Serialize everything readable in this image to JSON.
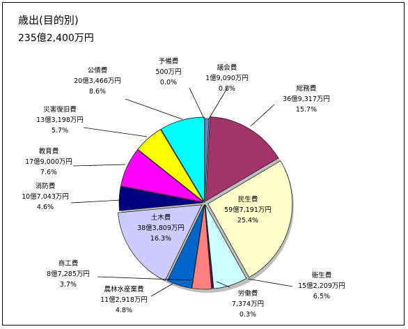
{
  "chart_data": {
    "type": "pie",
    "title": "歳出(目的別)",
    "subtitle": "235億2,400万円",
    "slices": [
      {
        "name": "議会費",
        "amount": "1億9,090万円",
        "percent": "0.8%",
        "value": 0.8,
        "color": "#6f7fc4"
      },
      {
        "name": "総務費",
        "amount": "36億9,317万円",
        "percent": "15.7%",
        "value": 15.7,
        "color": "#a3336b"
      },
      {
        "name": "民生費",
        "amount": "59億7,191万円",
        "percent": "25.4%",
        "value": 25.4,
        "color": "#ffffcc"
      },
      {
        "name": "衛生費",
        "amount": "15億2,209万円",
        "percent": "6.5%",
        "value": 6.5,
        "color": "#ccffff"
      },
      {
        "name": "労働費",
        "amount": "7,374万円",
        "percent": "0.3%",
        "value": 0.3,
        "color": "#6a0a6a"
      },
      {
        "name": "商工費",
        "amount": "8億7,285万円",
        "percent": "3.7%",
        "value": 3.7,
        "color": "#ff8080"
      },
      {
        "name": "農林水産業費",
        "amount": "11億2,918万円",
        "percent": "4.8%",
        "value": 4.8,
        "color": "#0066cc"
      },
      {
        "name": "土木費",
        "amount": "38億3,809万円",
        "percent": "16.3%",
        "value": 16.3,
        "color": "#ccccff"
      },
      {
        "name": "消防費",
        "amount": "10億7,043万円",
        "percent": "4.6%",
        "value": 4.6,
        "color": "#000080"
      },
      {
        "name": "教育費",
        "amount": "17億9,000万円",
        "percent": "7.6%",
        "value": 7.6,
        "color": "#ff00ff"
      },
      {
        "name": "災害復旧費",
        "amount": "13億3,198万円",
        "percent": "5.7%",
        "value": 5.7,
        "color": "#ffff00"
      },
      {
        "name": "公債費",
        "amount": "20億3,466万円",
        "percent": "8.6%",
        "value": 8.6,
        "color": "#00ffff"
      },
      {
        "name": "予備費",
        "amount": "500万円",
        "percent": "0.0%",
        "value": 0.0,
        "color": "#800000"
      }
    ]
  }
}
